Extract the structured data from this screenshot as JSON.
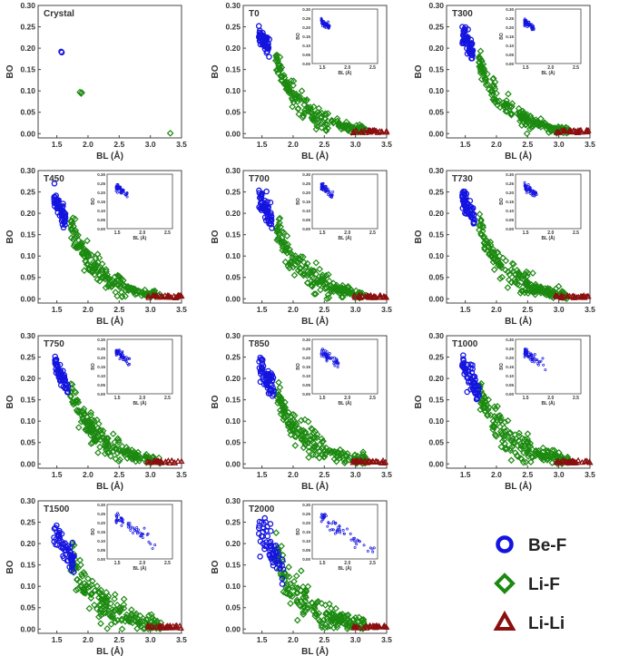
{
  "colors": {
    "be_f": "#1414e0",
    "li_f": "#1c8a10",
    "li_li": "#8b0f0f",
    "axis": "#333333",
    "frame": "#444444"
  },
  "legend": [
    {
      "label": "Be-F",
      "marker": "circle",
      "color_key": "be_f"
    },
    {
      "label": "Li-F",
      "marker": "diamond",
      "color_key": "li_f"
    },
    {
      "label": "Li-Li",
      "marker": "triangle",
      "color_key": "li_li"
    }
  ],
  "chart_data": {
    "type": "scatter",
    "xlabel": "BL (Å)",
    "ylabel": "BO",
    "xlim": [
      1.2,
      3.5
    ],
    "ylim": [
      -0.01,
      0.3
    ],
    "xticks": [
      "1.5",
      "2.0",
      "2.5",
      "3.0",
      "3.5"
    ],
    "yticks": [
      "0.00",
      "0.05",
      "0.10",
      "0.15",
      "0.20",
      "0.25",
      "0.30"
    ],
    "inset": {
      "xlabel": "BL (Å)",
      "ylabel": "BO",
      "xlim": [
        1.3,
        2.6
      ],
      "ylim": [
        0.0,
        0.3
      ],
      "xticks": [
        "1.5",
        "2.0",
        "2.5"
      ],
      "yticks": [
        "0.00",
        "0.05",
        "0.10",
        "0.15",
        "0.20",
        "0.25",
        "0.30"
      ],
      "series": "Be-F"
    },
    "panels": [
      {
        "title": "Crystal",
        "has_inset": false,
        "cloud": false,
        "points": {
          "be_f": [
            [
              1.57,
              0.192
            ],
            [
              1.58,
              0.19
            ]
          ],
          "li_f": [
            [
              1.87,
              0.097
            ],
            [
              1.89,
              0.094
            ],
            [
              1.9,
              0.096
            ]
          ],
          "li_li": [],
          "li_f_extra": [
            [
              3.32,
              0.001
            ]
          ]
        }
      },
      {
        "title": "T0",
        "has_inset": true,
        "cloud": true,
        "spread": 0.012,
        "be_max_bl": 1.62,
        "inset_max_bl": 1.65
      },
      {
        "title": "T300",
        "has_inset": true,
        "cloud": true,
        "spread": 0.013,
        "be_max_bl": 1.63,
        "inset_max_bl": 1.68
      },
      {
        "title": "T450",
        "has_inset": true,
        "cloud": true,
        "spread": 0.014,
        "be_max_bl": 1.65,
        "inset_max_bl": 1.7
      },
      {
        "title": "T700",
        "has_inset": true,
        "cloud": true,
        "spread": 0.015,
        "be_max_bl": 1.66,
        "inset_max_bl": 1.72
      },
      {
        "title": "T730",
        "has_inset": true,
        "cloud": true,
        "spread": 0.015,
        "be_max_bl": 1.66,
        "inset_max_bl": 1.72
      },
      {
        "title": "T750",
        "has_inset": true,
        "cloud": true,
        "spread": 0.016,
        "be_max_bl": 1.68,
        "inset_max_bl": 1.75
      },
      {
        "title": "T850",
        "has_inset": true,
        "cloud": true,
        "spread": 0.017,
        "be_max_bl": 1.7,
        "inset_max_bl": 1.85
      },
      {
        "title": "T1000",
        "has_inset": true,
        "cloud": true,
        "spread": 0.019,
        "be_max_bl": 1.72,
        "inset_max_bl": 1.9
      },
      {
        "title": "T1500",
        "has_inset": true,
        "cloud": true,
        "spread": 0.022,
        "be_max_bl": 1.78,
        "inset_max_bl": 2.3
      },
      {
        "title": "T2000",
        "has_inset": true,
        "cloud": true,
        "spread": 0.025,
        "be_max_bl": 1.85,
        "inset_max_bl": 2.55
      }
    ]
  }
}
